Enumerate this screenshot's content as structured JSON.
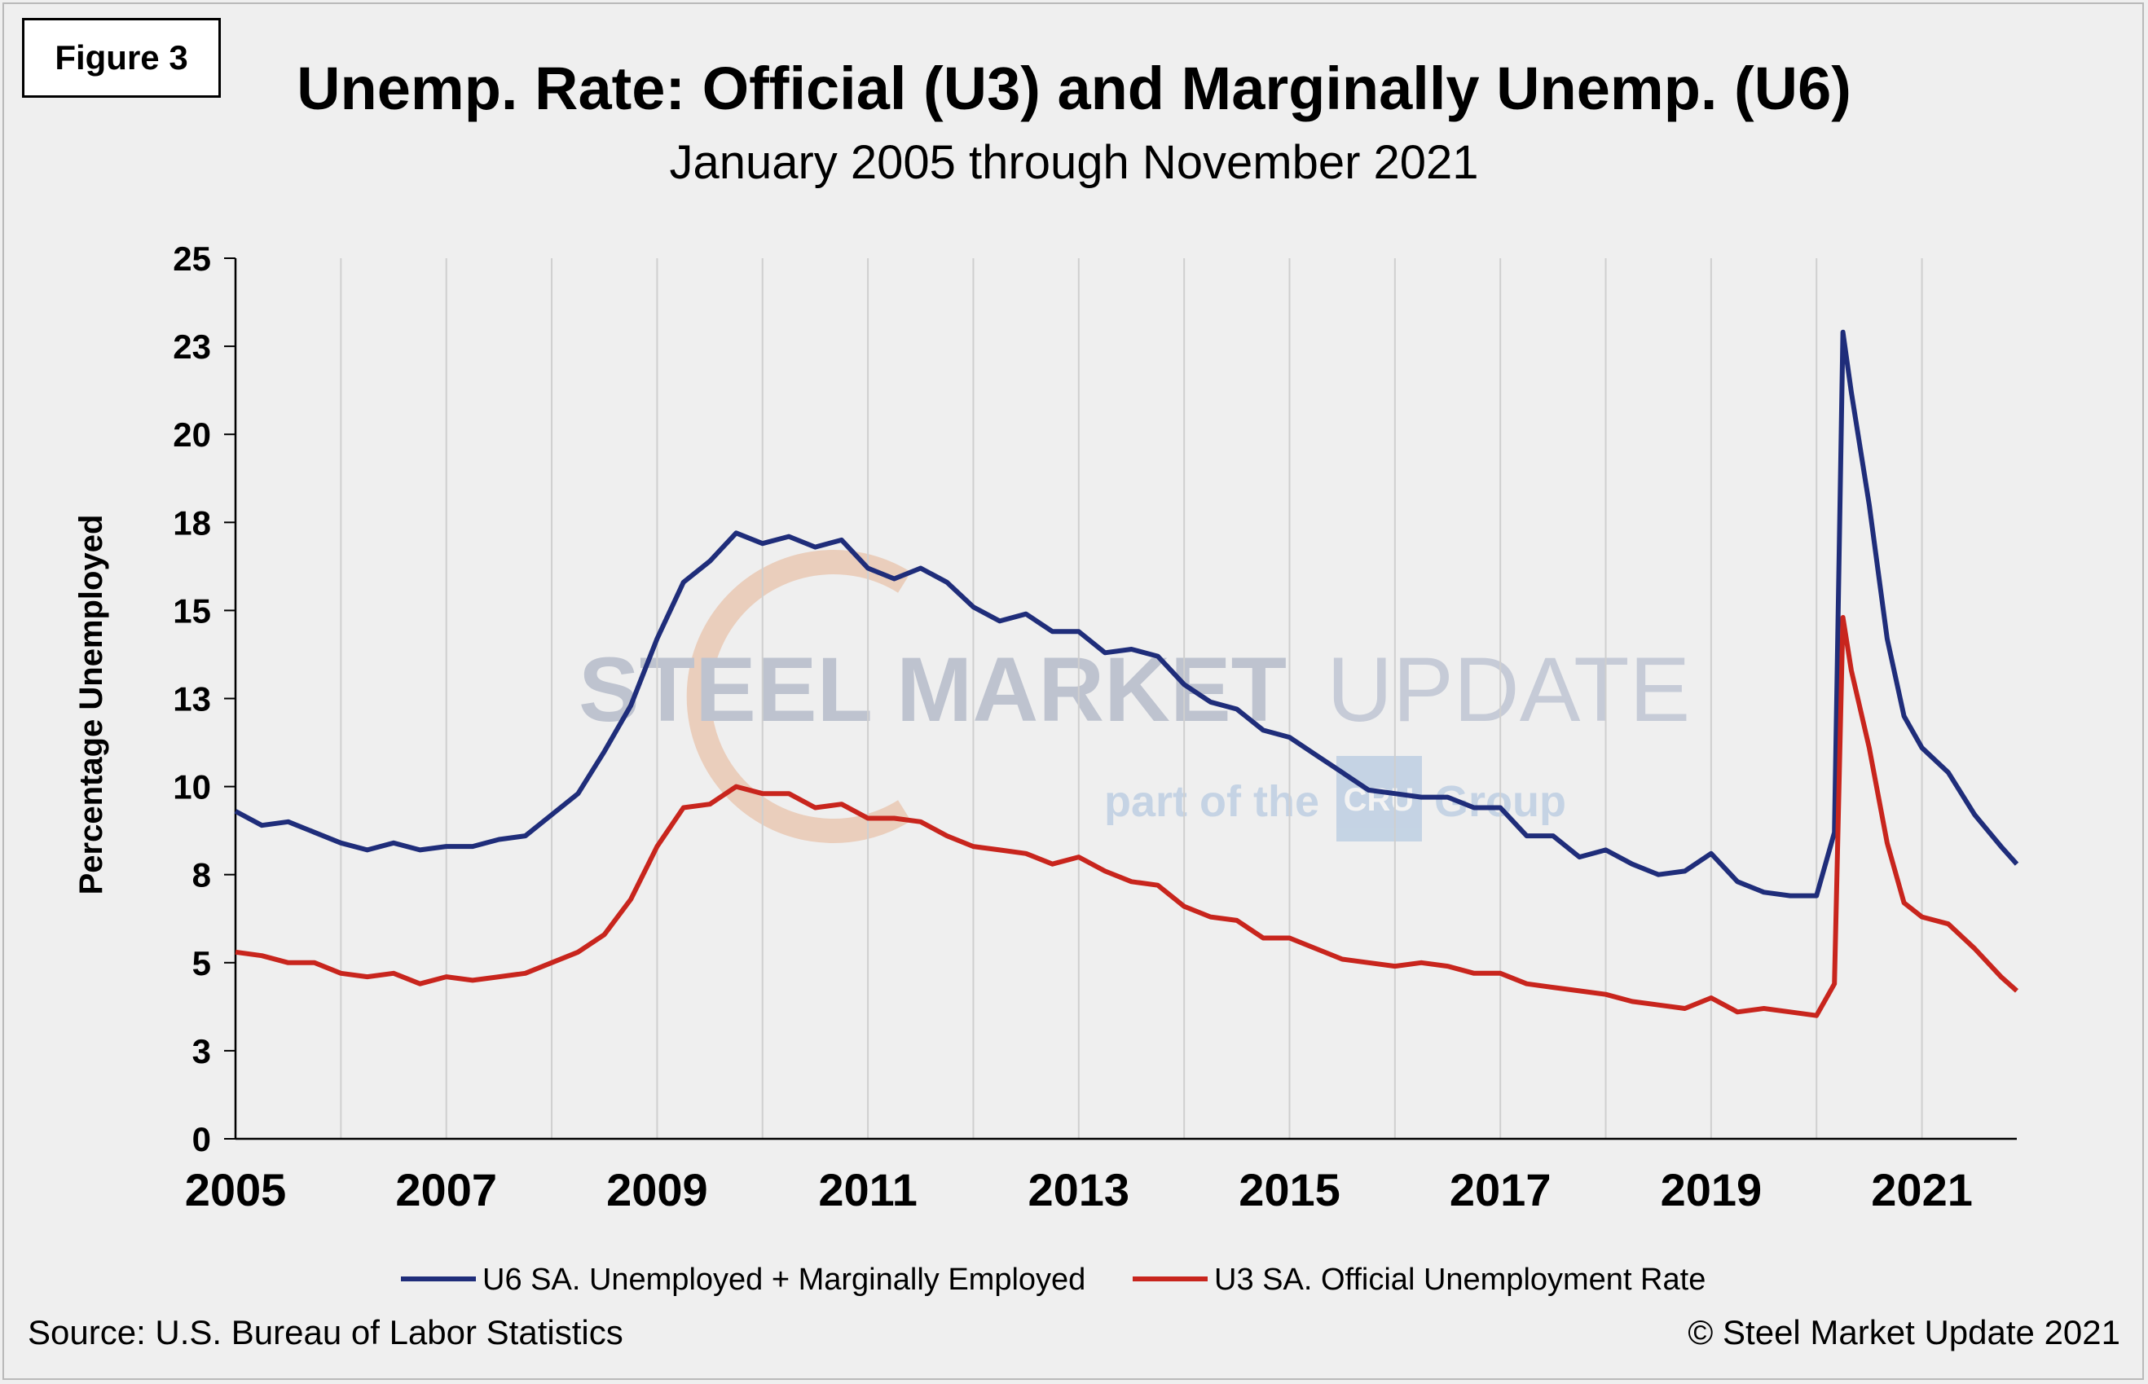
{
  "figure_label": "Figure 3",
  "source": "Source: U.S. Bureau  of Labor Statistics",
  "copyright": "© Steel Market Update 2021",
  "watermark": {
    "line1_bold": "STEEL MARKET",
    "line1_light": "UPDATE",
    "line2_pre": "part of the",
    "line2_logo": "CRU",
    "line2_post": "Group"
  },
  "colors": {
    "u6": "#1f2d7a",
    "u3": "#c8251d",
    "grid": "#cfcfcf",
    "background": "#efefef"
  },
  "chart_data": {
    "type": "line",
    "title": "Unemp. Rate: Official (U3) and Marginally Unemp. (U6)",
    "subtitle": "January 2005 through November 2021",
    "xlabel": "",
    "ylabel": "Percentage Unemployed",
    "xlim": [
      2005.0,
      2021.9
    ],
    "ylim": [
      0,
      25
    ],
    "y_ticks": [
      "0",
      "3",
      "5",
      "8",
      "10",
      "13",
      "15",
      "18",
      "20",
      "23",
      "25"
    ],
    "x_ticks": [
      "2005",
      "2007",
      "2009",
      "2011",
      "2013",
      "2015",
      "2017",
      "2019",
      "2021"
    ],
    "grid": "vertical",
    "legend": "bottom",
    "series": [
      {
        "name": "U6 SA. Unemployed + Marginally Employed",
        "color": "#1f2d7a",
        "points": [
          [
            2005.0,
            9.3
          ],
          [
            2005.25,
            8.9
          ],
          [
            2005.5,
            9.0
          ],
          [
            2005.75,
            8.7
          ],
          [
            2006.0,
            8.4
          ],
          [
            2006.25,
            8.2
          ],
          [
            2006.5,
            8.4
          ],
          [
            2006.75,
            8.2
          ],
          [
            2007.0,
            8.3
          ],
          [
            2007.25,
            8.3
          ],
          [
            2007.5,
            8.5
          ],
          [
            2007.75,
            8.6
          ],
          [
            2008.0,
            9.2
          ],
          [
            2008.25,
            9.8
          ],
          [
            2008.5,
            11.0
          ],
          [
            2008.75,
            12.3
          ],
          [
            2009.0,
            14.2
          ],
          [
            2009.25,
            15.8
          ],
          [
            2009.5,
            16.4
          ],
          [
            2009.75,
            17.2
          ],
          [
            2010.0,
            16.9
          ],
          [
            2010.25,
            17.1
          ],
          [
            2010.5,
            16.8
          ],
          [
            2010.75,
            17.0
          ],
          [
            2011.0,
            16.2
          ],
          [
            2011.25,
            15.9
          ],
          [
            2011.5,
            16.2
          ],
          [
            2011.75,
            15.8
          ],
          [
            2012.0,
            15.1
          ],
          [
            2012.25,
            14.7
          ],
          [
            2012.5,
            14.9
          ],
          [
            2012.75,
            14.4
          ],
          [
            2013.0,
            14.4
          ],
          [
            2013.25,
            13.8
          ],
          [
            2013.5,
            13.9
          ],
          [
            2013.75,
            13.7
          ],
          [
            2014.0,
            12.9
          ],
          [
            2014.25,
            12.4
          ],
          [
            2014.5,
            12.2
          ],
          [
            2014.75,
            11.6
          ],
          [
            2015.0,
            11.4
          ],
          [
            2015.25,
            10.9
          ],
          [
            2015.5,
            10.4
          ],
          [
            2015.75,
            9.9
          ],
          [
            2016.0,
            9.8
          ],
          [
            2016.25,
            9.7
          ],
          [
            2016.5,
            9.7
          ],
          [
            2016.75,
            9.4
          ],
          [
            2017.0,
            9.4
          ],
          [
            2017.25,
            8.6
          ],
          [
            2017.5,
            8.6
          ],
          [
            2017.75,
            8.0
          ],
          [
            2018.0,
            8.2
          ],
          [
            2018.25,
            7.8
          ],
          [
            2018.5,
            7.5
          ],
          [
            2018.75,
            7.6
          ],
          [
            2019.0,
            8.1
          ],
          [
            2019.25,
            7.3
          ],
          [
            2019.5,
            7.0
          ],
          [
            2019.75,
            6.9
          ],
          [
            2020.0,
            6.9
          ],
          [
            2020.17,
            8.7
          ],
          [
            2020.25,
            22.9
          ],
          [
            2020.33,
            21.2
          ],
          [
            2020.5,
            18.0
          ],
          [
            2020.67,
            14.2
          ],
          [
            2020.83,
            12.0
          ],
          [
            2021.0,
            11.1
          ],
          [
            2021.25,
            10.4
          ],
          [
            2021.5,
            9.2
          ],
          [
            2021.75,
            8.3
          ],
          [
            2021.9,
            7.8
          ]
        ]
      },
      {
        "name": "U3 SA. Official Unemployment Rate",
        "color": "#c8251d",
        "points": [
          [
            2005.0,
            5.3
          ],
          [
            2005.25,
            5.2
          ],
          [
            2005.5,
            5.0
          ],
          [
            2005.75,
            5.0
          ],
          [
            2006.0,
            4.7
          ],
          [
            2006.25,
            4.6
          ],
          [
            2006.5,
            4.7
          ],
          [
            2006.75,
            4.4
          ],
          [
            2007.0,
            4.6
          ],
          [
            2007.25,
            4.5
          ],
          [
            2007.5,
            4.6
          ],
          [
            2007.75,
            4.7
          ],
          [
            2008.0,
            5.0
          ],
          [
            2008.25,
            5.3
          ],
          [
            2008.5,
            5.8
          ],
          [
            2008.75,
            6.8
          ],
          [
            2009.0,
            8.3
          ],
          [
            2009.25,
            9.4
          ],
          [
            2009.5,
            9.5
          ],
          [
            2009.75,
            10.0
          ],
          [
            2010.0,
            9.8
          ],
          [
            2010.25,
            9.8
          ],
          [
            2010.5,
            9.4
          ],
          [
            2010.75,
            9.5
          ],
          [
            2011.0,
            9.1
          ],
          [
            2011.25,
            9.1
          ],
          [
            2011.5,
            9.0
          ],
          [
            2011.75,
            8.6
          ],
          [
            2012.0,
            8.3
          ],
          [
            2012.25,
            8.2
          ],
          [
            2012.5,
            8.1
          ],
          [
            2012.75,
            7.8
          ],
          [
            2013.0,
            8.0
          ],
          [
            2013.25,
            7.6
          ],
          [
            2013.5,
            7.3
          ],
          [
            2013.75,
            7.2
          ],
          [
            2014.0,
            6.6
          ],
          [
            2014.25,
            6.3
          ],
          [
            2014.5,
            6.2
          ],
          [
            2014.75,
            5.7
          ],
          [
            2015.0,
            5.7
          ],
          [
            2015.25,
            5.4
          ],
          [
            2015.5,
            5.1
          ],
          [
            2015.75,
            5.0
          ],
          [
            2016.0,
            4.9
          ],
          [
            2016.25,
            5.0
          ],
          [
            2016.5,
            4.9
          ],
          [
            2016.75,
            4.7
          ],
          [
            2017.0,
            4.7
          ],
          [
            2017.25,
            4.4
          ],
          [
            2017.5,
            4.3
          ],
          [
            2017.75,
            4.2
          ],
          [
            2018.0,
            4.1
          ],
          [
            2018.25,
            3.9
          ],
          [
            2018.5,
            3.8
          ],
          [
            2018.75,
            3.7
          ],
          [
            2019.0,
            4.0
          ],
          [
            2019.25,
            3.6
          ],
          [
            2019.5,
            3.7
          ],
          [
            2019.75,
            3.6
          ],
          [
            2020.0,
            3.5
          ],
          [
            2020.17,
            4.4
          ],
          [
            2020.25,
            14.8
          ],
          [
            2020.33,
            13.3
          ],
          [
            2020.5,
            11.1
          ],
          [
            2020.67,
            8.4
          ],
          [
            2020.83,
            6.7
          ],
          [
            2021.0,
            6.3
          ],
          [
            2021.25,
            6.1
          ],
          [
            2021.5,
            5.4
          ],
          [
            2021.75,
            4.6
          ],
          [
            2021.9,
            4.2
          ]
        ]
      }
    ]
  }
}
